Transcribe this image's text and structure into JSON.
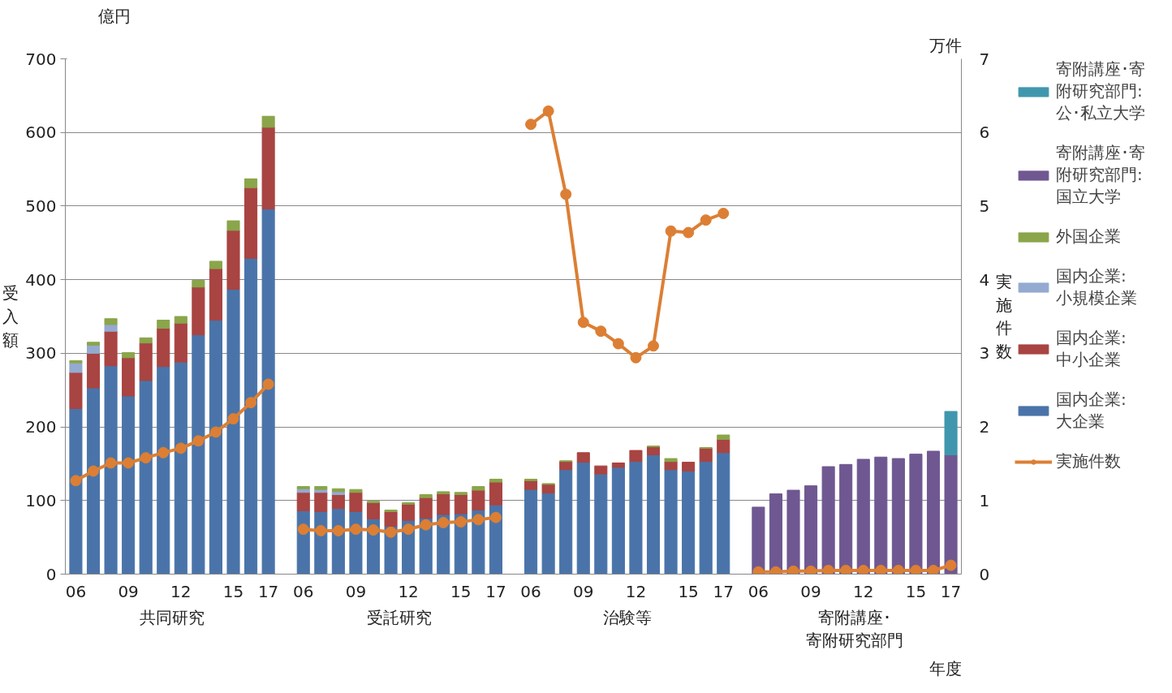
{
  "chart_data": {
    "type": "bar",
    "stacked": true,
    "categories": [
      "06",
      null,
      null,
      "09",
      null,
      null,
      "12",
      null,
      null,
      "15",
      null,
      "17",
      null,
      "06",
      null,
      null,
      "09",
      null,
      null,
      "12",
      null,
      null,
      "15",
      null,
      "17",
      null,
      "06",
      null,
      null,
      "09",
      null,
      null,
      "12",
      null,
      null,
      "15",
      null,
      "17",
      null,
      "06",
      null,
      null,
      "09",
      null,
      null,
      "12",
      null,
      null,
      "15",
      null,
      "17"
    ],
    "series": [
      {
        "name": "国内企業:大企業",
        "color": "#4a74a9",
        "values": [
          225,
          253,
          283,
          242,
          263,
          282,
          288,
          325,
          345,
          387,
          429,
          496,
          null,
          86,
          85,
          89,
          85,
          75,
          65,
          73,
          76,
          81,
          82,
          87,
          94,
          null,
          115,
          110,
          142,
          152,
          136,
          145,
          153,
          162,
          142,
          140,
          153,
          165,
          null,
          null,
          null,
          null,
          null,
          null,
          null,
          null,
          null,
          null,
          null,
          null,
          null
        ]
      },
      {
        "name": "国内企業:中小企業",
        "color": "#a84442",
        "values": [
          49,
          47,
          47,
          52,
          51,
          52,
          53,
          65,
          70,
          80,
          96,
          111,
          null,
          25,
          26,
          19,
          26,
          22,
          20,
          22,
          28,
          28,
          26,
          27,
          31,
          null,
          12,
          12,
          11,
          13,
          11,
          6,
          15,
          11,
          11,
          12,
          18,
          18,
          null,
          null,
          null,
          null,
          null,
          null,
          null,
          null,
          null,
          null,
          null,
          null,
          null
        ]
      },
      {
        "name": "国内企業:小規模企業",
        "color": "#94aad1",
        "values": [
          13,
          11,
          9,
          null,
          null,
          null,
          null,
          null,
          null,
          null,
          null,
          null,
          null,
          5,
          4,
          4,
          null,
          null,
          null,
          null,
          null,
          null,
          null,
          null,
          null,
          null,
          null,
          null,
          null,
          null,
          null,
          null,
          null,
          null,
          null,
          null,
          null,
          null,
          null,
          null,
          null,
          null,
          null,
          null,
          null,
          null,
          null,
          null,
          null,
          null,
          null
        ]
      },
      {
        "name": "外国企業",
        "color": "#8aa54a",
        "values": [
          3,
          4,
          8,
          7,
          7,
          11,
          9,
          9,
          10,
          13,
          12,
          15,
          null,
          3,
          4,
          4,
          4,
          2,
          2,
          2,
          4,
          3,
          3,
          5,
          4,
          null,
          2,
          1,
          1,
          null,
          null,
          null,
          null,
          1,
          4,
          null,
          1,
          6,
          null,
          null,
          null,
          null,
          null,
          null,
          null,
          null,
          null,
          null,
          null,
          null,
          null
        ]
      },
      {
        "name": "寄附講座･寄附研究部門:国立大学",
        "color": "#6f5891",
        "values": [
          null,
          null,
          null,
          null,
          null,
          null,
          null,
          null,
          null,
          null,
          null,
          null,
          null,
          null,
          null,
          null,
          null,
          null,
          null,
          null,
          null,
          null,
          null,
          null,
          null,
          null,
          null,
          null,
          null,
          null,
          null,
          null,
          null,
          null,
          null,
          null,
          null,
          null,
          null,
          91,
          109,
          114,
          120,
          146,
          149,
          156,
          159,
          157,
          163,
          167,
          162
        ]
      },
      {
        "name": "寄附講座･寄附研究部門:公･私立大学",
        "color": "#4097ad",
        "values": [
          null,
          null,
          null,
          null,
          null,
          null,
          null,
          null,
          null,
          null,
          null,
          null,
          null,
          null,
          null,
          null,
          null,
          null,
          null,
          null,
          null,
          null,
          null,
          null,
          null,
          null,
          null,
          null,
          null,
          null,
          null,
          null,
          null,
          null,
          null,
          null,
          null,
          null,
          null,
          null,
          null,
          null,
          null,
          null,
          null,
          null,
          null,
          null,
          null,
          null,
          59
        ]
      },
      {
        "name": "実施件数",
        "type": "line",
        "axis": "y2",
        "color": "#dc7f34",
        "marker": "circle",
        "values": [
          1.27,
          1.4,
          1.51,
          1.51,
          1.58,
          1.65,
          1.71,
          1.81,
          1.93,
          2.11,
          2.33,
          2.58,
          null,
          0.61,
          0.59,
          0.59,
          0.61,
          0.6,
          0.57,
          0.61,
          0.67,
          0.7,
          0.71,
          0.74,
          0.77,
          null,
          6.11,
          6.29,
          5.16,
          3.42,
          3.3,
          3.13,
          2.94,
          3.1,
          4.66,
          4.64,
          4.81,
          4.9,
          null,
          0.03,
          0.03,
          0.04,
          0.04,
          0.05,
          0.05,
          0.05,
          0.05,
          0.05,
          0.05,
          0.05,
          0.12
        ]
      }
    ],
    "ylabel": "受入額",
    "y2label": "実施件数",
    "xlabel": "年度",
    "ylim": [
      0,
      700
    ],
    "yticks": [
      0,
      100,
      200,
      300,
      400,
      500,
      600,
      700
    ],
    "y2lim": [
      0,
      7
    ],
    "y2ticks": [
      0,
      1,
      2,
      3,
      4,
      5,
      6,
      7
    ],
    "grid": "y",
    "legend": "right",
    "annotations": [
      "億円",
      "万件",
      "共同研究",
      "受託研究",
      "治験等",
      "寄附講座･寄附研究部門"
    ]
  }
}
